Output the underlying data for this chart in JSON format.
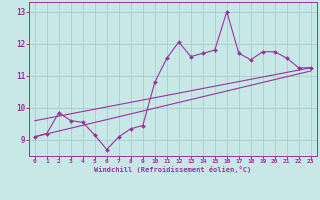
{
  "x_data": [
    0,
    1,
    2,
    3,
    4,
    5,
    6,
    7,
    8,
    9,
    10,
    11,
    12,
    13,
    14,
    15,
    16,
    17,
    18,
    19,
    20,
    21,
    22,
    23
  ],
  "y_data": [
    9.1,
    9.2,
    9.85,
    9.6,
    9.55,
    9.15,
    8.7,
    9.1,
    9.35,
    9.45,
    10.8,
    11.55,
    12.05,
    11.6,
    11.7,
    11.8,
    13.0,
    11.7,
    11.5,
    11.75,
    11.75,
    11.55,
    11.25,
    11.25
  ],
  "line_color": "#993399",
  "bg_color": "#c8e8e8",
  "grid_color": "#aacccc",
  "text_color": "#993399",
  "xlabel": "Windchill (Refroidissement éolien,°C)",
  "xlim": [
    -0.5,
    23.5
  ],
  "ylim": [
    8.5,
    13.3
  ],
  "yticks": [
    9,
    10,
    11,
    12,
    13
  ],
  "xticks": [
    0,
    1,
    2,
    3,
    4,
    5,
    6,
    7,
    8,
    9,
    10,
    11,
    12,
    13,
    14,
    15,
    16,
    17,
    18,
    19,
    20,
    21,
    22,
    23
  ],
  "reg_line1_x": [
    0,
    23
  ],
  "reg_line1_y": [
    9.1,
    11.15
  ],
  "reg_line2_x": [
    0,
    23
  ],
  "reg_line2_y": [
    9.6,
    11.25
  ]
}
